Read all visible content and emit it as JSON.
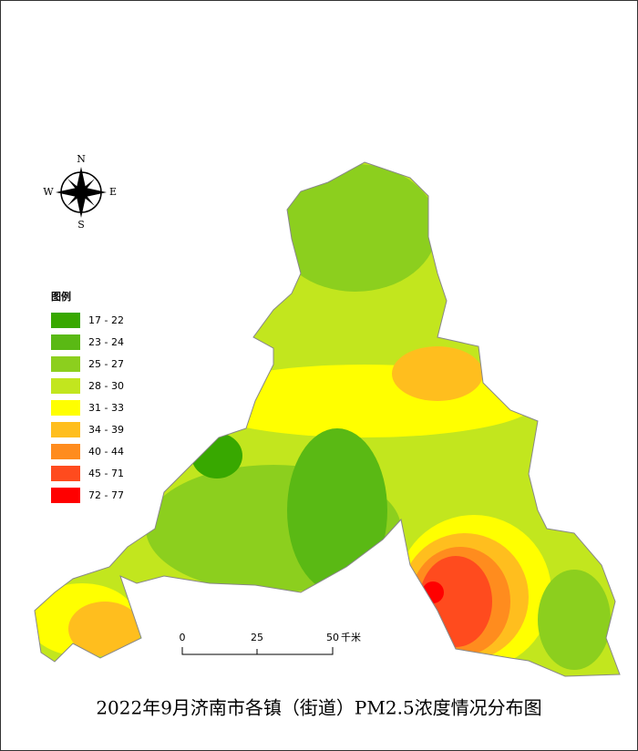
{
  "title": "2022年9月济南市各镇（街道）PM2.5浓度情况分布图",
  "compass": {
    "north": "N",
    "south": "S",
    "west": "W",
    "east": "E"
  },
  "legend": {
    "title": "图例",
    "items": [
      {
        "label": "17 - 22",
        "color": "#38a800"
      },
      {
        "label": "23 - 24",
        "color": "#5ab914"
      },
      {
        "label": "25 - 27",
        "color": "#8ccf1e"
      },
      {
        "label": "28 - 30",
        "color": "#c2e61e"
      },
      {
        "label": "31 - 33",
        "color": "#ffff00"
      },
      {
        "label": "34 - 39",
        "color": "#ffbe1e"
      },
      {
        "label": "40 - 44",
        "color": "#ff8c1e"
      },
      {
        "label": "45 - 71",
        "color": "#ff4b1e"
      },
      {
        "label": "72 - 77",
        "color": "#ff0000"
      }
    ]
  },
  "scale_bar": {
    "ticks": [
      "0",
      "25",
      "50"
    ],
    "unit": "千米"
  }
}
